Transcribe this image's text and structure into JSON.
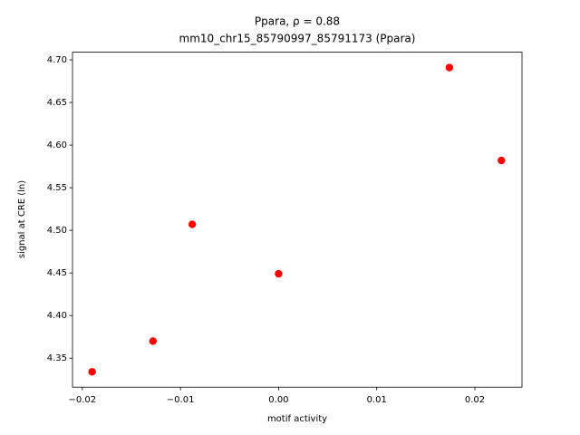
{
  "chart_data": {
    "type": "scatter",
    "title": "Ppara, ρ = 0.88",
    "subtitle": "mm10_chr15_85790997_85791173 (Ppara)",
    "x_label": "motif activity",
    "y_label": "signal at CRE (ln)",
    "color": "#ff0000",
    "x": [
      -0.019,
      -0.0128,
      -0.0088,
      0.0,
      0.0174,
      0.0227
    ],
    "values": [
      4.334,
      4.37,
      4.507,
      4.449,
      4.691,
      4.582
    ],
    "xlim": [
      -0.021,
      0.0248
    ],
    "ylim": [
      4.316,
      4.709
    ],
    "xticks": [
      {
        "value": -0.02,
        "label": "−0.02"
      },
      {
        "value": -0.01,
        "label": "−0.01"
      },
      {
        "value": 0,
        "label": "0.00"
      },
      {
        "value": 0.01,
        "label": "0.01"
      },
      {
        "value": 0.02,
        "label": "0.02"
      }
    ],
    "yticks": [
      4.35,
      {
        "value": 4.4,
        "label": "4.40"
      },
      4.45,
      {
        "value": 4.5,
        "label": "4.50"
      },
      4.55,
      {
        "value": 4.6,
        "label": "4.60"
      },
      4.65,
      {
        "value": 4.7,
        "label": "4.70"
      }
    ]
  }
}
